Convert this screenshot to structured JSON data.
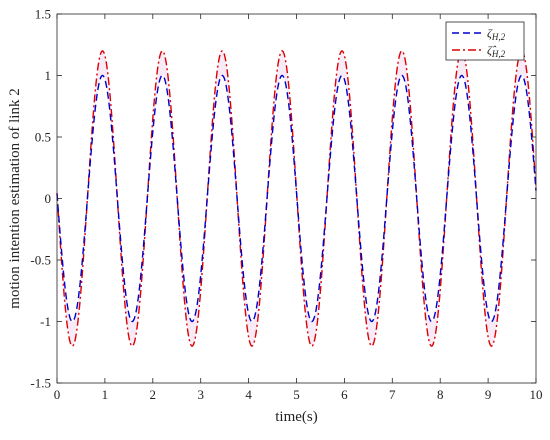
{
  "chart_data": {
    "type": "line",
    "title": "",
    "xlabel": "time(s)",
    "ylabel": "motion intention estimation of link 2",
    "xlim": [
      0,
      10
    ],
    "ylim": [
      -1.5,
      1.5
    ],
    "x_ticks": [
      "0",
      "1",
      "2",
      "3",
      "4",
      "5",
      "6",
      "7",
      "8",
      "9",
      "10"
    ],
    "y_ticks": [
      "-1.5",
      "-1",
      "-0.5",
      "0",
      "0.5",
      "1",
      "1.5"
    ],
    "grid": false,
    "legend_position": "top-right",
    "colors": {
      "series_actual": "#0000cc",
      "series_estimate": "#dd0000",
      "axes": "#262626",
      "shading": "#f6e6f6"
    },
    "series": [
      {
        "name": "ζ_{H,2}",
        "legend_base": "ζ",
        "legend_sub": "H,2",
        "style": "dashed",
        "amplitude": 1.0,
        "period_s": 1.25,
        "peak_times": [
          0.95,
          2.2,
          3.45,
          4.7,
          5.95,
          7.2,
          8.45,
          9.7
        ],
        "trough_times": [
          0.32,
          1.57,
          2.82,
          4.07,
          5.32,
          6.57,
          7.82,
          9.07
        ]
      },
      {
        "name": "ζ̂_{H,2}",
        "legend_base": "ζ̂",
        "legend_sub": "H,2",
        "style": "dash-dot",
        "amplitude": 1.2,
        "period_s": 1.25,
        "peak_times": [
          0.95,
          2.2,
          3.45,
          4.7,
          5.95,
          7.2,
          8.45,
          9.7
        ],
        "trough_times": [
          0.32,
          1.57,
          2.82,
          4.07,
          5.32,
          6.57,
          7.82,
          9.07
        ]
      }
    ]
  }
}
